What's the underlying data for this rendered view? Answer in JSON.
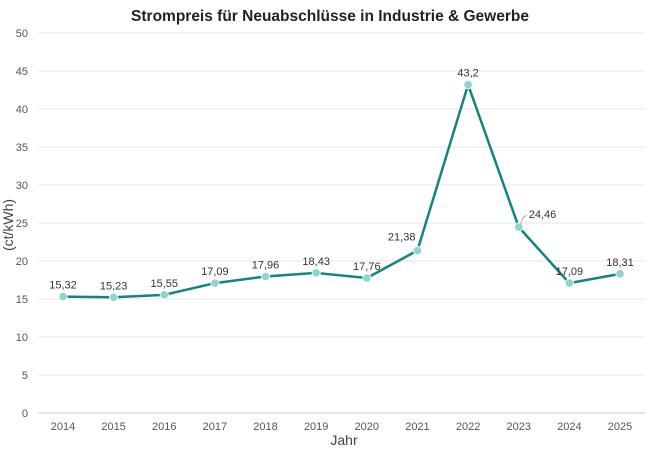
{
  "chart_data": {
    "type": "line",
    "title": "Strompreis für Neuabschlüsse in Industrie & Gewerbe",
    "xlabel": "Jahr",
    "ylabel": "(ct/kWh)",
    "ylim": [
      0,
      50
    ],
    "yticks": [
      0,
      5,
      10,
      15,
      20,
      25,
      30,
      35,
      40,
      45,
      50
    ],
    "grid": true,
    "legend": "none",
    "categories": [
      "2014",
      "2015",
      "2016",
      "2017",
      "2018",
      "2019",
      "2020",
      "2021",
      "2022",
      "2023",
      "2024",
      "2025"
    ],
    "series": [
      {
        "values": [
          15.32,
          15.23,
          15.55,
          17.09,
          17.96,
          18.43,
          17.76,
          21.38,
          43.2,
          24.46,
          17.09,
          18.31
        ],
        "labels": [
          "15,32",
          "15,23",
          "15,55",
          "17,09",
          "17,96",
          "18,43",
          "17,76",
          "21,38",
          "43,2",
          "24,46",
          "17,09",
          "18,31"
        ],
        "color": "#13857e",
        "marker_color": "#8ed6cc"
      }
    ]
  }
}
